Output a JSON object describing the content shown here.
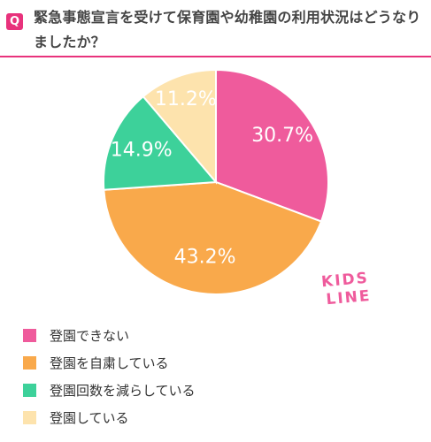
{
  "header": {
    "badge": "Q",
    "question": "緊急事態宣言を受けて保育園や幼稚園の利用状況はどうなりましたか？",
    "accent_color": "#e8327c"
  },
  "chart_data": {
    "type": "pie",
    "categories": [
      "登園できない",
      "登園を自粛している",
      "登園回数を減らしている",
      "登園している"
    ],
    "values": [
      30.7,
      43.2,
      14.9,
      11.2
    ],
    "value_labels": [
      "30.7%",
      "43.2%",
      "14.9%",
      "11.2%"
    ],
    "colors": [
      "#ef5b9c",
      "#f9a94b",
      "#3dd19a",
      "#fde3ad"
    ],
    "start_angle_deg": 0,
    "direction": "clockwise",
    "slice_borders": "white",
    "legend_position": "bottom-left"
  },
  "logo": {
    "line1": "KIDS",
    "line2": "LINE",
    "color": "#ef5b9c"
  }
}
